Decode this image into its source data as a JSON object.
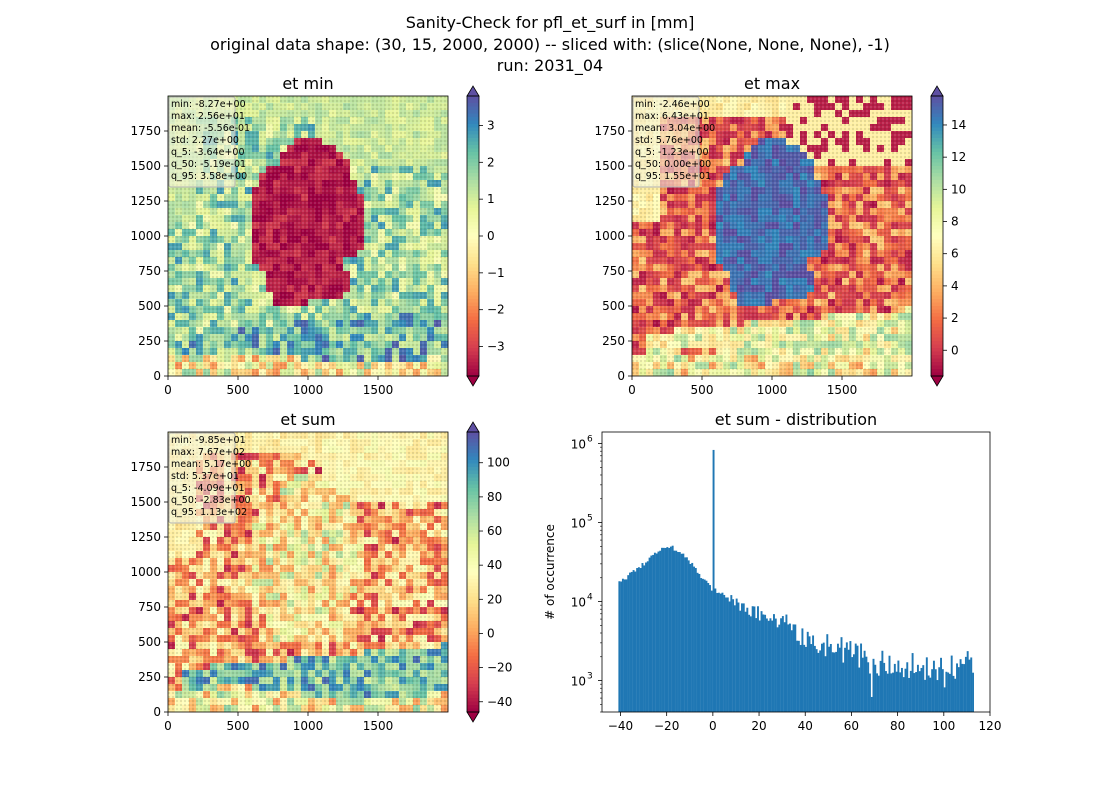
{
  "figure": {
    "title_lines": [
      "Sanity-Check for pfl_et_surf in [mm]",
      "original data shape: (30, 15, 2000, 2000) -- sliced with: (slice(None, None, None), -1)",
      "run: 2031_04"
    ]
  },
  "colors": {
    "colormap": [
      "#9e0142",
      "#d53e4f",
      "#f46d43",
      "#fdae61",
      "#fee08b",
      "#ffffbf",
      "#e6f598",
      "#abdda4",
      "#66c2a5",
      "#3288bd",
      "#5e4fa2"
    ],
    "histogram_bar": "#1f77b4",
    "stats_box_bg": "#f5f5dc",
    "stats_box_border": "#b0b0b0"
  },
  "chart_data": [
    {
      "type": "heatmap",
      "title": "et min",
      "xlim": [
        0,
        2000
      ],
      "ylim": [
        0,
        2000
      ],
      "x_ticks": [
        0,
        500,
        1000,
        1500
      ],
      "y_ticks": [
        0,
        250,
        500,
        750,
        1000,
        1250,
        1500,
        1750
      ],
      "colorbar": {
        "vmin": -3.8,
        "vmax": 3.8,
        "ticks": [
          -3,
          -2,
          -1,
          0,
          1,
          2,
          3
        ],
        "tick_labels": [
          "−3",
          "−2",
          "−1",
          "0",
          "1",
          "2",
          "3"
        ],
        "extend": "both"
      },
      "stats": [
        "min: -8.27e+00",
        "max: 2.56e+01",
        "mean: -5.56e-01",
        "std: 2.27e+00",
        "q_5: -3.64e+00",
        "q_50: -5.19e-01",
        "q_95: 3.58e+00"
      ]
    },
    {
      "type": "heatmap",
      "title": "et max",
      "xlim": [
        0,
        2000
      ],
      "ylim": [
        0,
        2000
      ],
      "x_ticks": [
        0,
        500,
        1000,
        1500
      ],
      "y_ticks": [
        0,
        250,
        500,
        750,
        1000,
        1250,
        1500,
        1750
      ],
      "colorbar": {
        "vmin": -1.6,
        "vmax": 15.8,
        "ticks": [
          0,
          2,
          4,
          6,
          8,
          10,
          12,
          14
        ],
        "tick_labels": [
          "0",
          "2",
          "4",
          "6",
          "8",
          "10",
          "12",
          "14"
        ],
        "extend": "both"
      },
      "stats": [
        "min: -2.46e+00",
        "max: 6.43e+01",
        "mean: 3.04e+00",
        "std: 5.76e+00",
        "q_5: -1.23e+00",
        "q_50: 0.00e+00",
        "q_95: 1.55e+01"
      ]
    },
    {
      "type": "heatmap",
      "title": "et sum",
      "xlim": [
        0,
        2000
      ],
      "ylim": [
        0,
        2000
      ],
      "x_ticks": [
        0,
        500,
        1000,
        1500
      ],
      "y_ticks": [
        0,
        250,
        500,
        750,
        1000,
        1250,
        1500,
        1750
      ],
      "colorbar": {
        "vmin": -46,
        "vmax": 118,
        "ticks": [
          -40,
          -20,
          0,
          20,
          40,
          60,
          80,
          100
        ],
        "tick_labels": [
          "−40",
          "−20",
          "0",
          "20",
          "40",
          "60",
          "80",
          "100"
        ],
        "extend": "both"
      },
      "stats": [
        "min: -9.85e+01",
        "max: 7.67e+02",
        "mean: 5.17e+00",
        "std: 5.37e+01",
        "q_5: -4.09e+01",
        "q_50: -2.83e+00",
        "q_95: 1.13e+02"
      ]
    },
    {
      "type": "bar",
      "title": "et sum - distribution",
      "xlabel": "",
      "ylabel": "# of occurrence",
      "y_scale": "log",
      "xlim": [
        -48,
        120
      ],
      "ylim": [
        400,
        1400000
      ],
      "x_ticks": [
        -40,
        -20,
        0,
        20,
        40,
        60,
        80,
        100,
        120
      ],
      "x_tick_labels": [
        "−40",
        "−20",
        "0",
        "20",
        "40",
        "60",
        "80",
        "100",
        "120"
      ],
      "y_ticks": [
        1000,
        10000,
        100000,
        1000000
      ],
      "y_tick_labels": [
        [
          "10",
          "3"
        ],
        [
          "10",
          "4"
        ],
        [
          "10",
          "5"
        ],
        [
          "10",
          "6"
        ]
      ],
      "bins": {
        "start": -40.9,
        "end": 113,
        "count": 200
      },
      "counts_profile": [
        [
          -40.9,
          17000
        ],
        [
          -35,
          23000
        ],
        [
          -30,
          30000
        ],
        [
          -25,
          42000
        ],
        [
          -20,
          52000
        ],
        [
          -15,
          45000
        ],
        [
          -10,
          32000
        ],
        [
          -5,
          21000
        ],
        [
          -1,
          15000
        ],
        [
          5,
          12000
        ],
        [
          10,
          9000
        ],
        [
          20,
          7000
        ],
        [
          30,
          5000
        ],
        [
          40,
          3500
        ],
        [
          50,
          2800
        ],
        [
          60,
          2200
        ],
        [
          70,
          1700
        ],
        [
          80,
          1600
        ],
        [
          90,
          1500
        ],
        [
          100,
          1400
        ],
        [
          113,
          1700
        ]
      ],
      "spike": {
        "x": 0,
        "value": 830000
      },
      "notable_dips": [
        {
          "x": 68.5,
          "value": 620
        },
        {
          "x": 100.5,
          "value": 820
        }
      ]
    }
  ]
}
